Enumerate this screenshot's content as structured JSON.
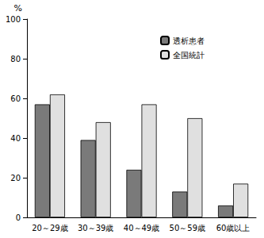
{
  "chart_data": {
    "type": "bar",
    "y_label": "%",
    "categories": [
      "20～29歳",
      "30～39歳",
      "40～49歳",
      "50～59歳",
      "60歳以上"
    ],
    "series": [
      {
        "name": "透析患者",
        "color": "#7a7a7a",
        "values": [
          57,
          39,
          24,
          13,
          6
        ]
      },
      {
        "name": "全国統計",
        "color": "#e0e0e0",
        "values": [
          62,
          48,
          57,
          50,
          17
        ]
      }
    ],
    "ylim": [
      0,
      100
    ],
    "yticks": [
      0,
      20,
      40,
      60,
      80,
      100
    ],
    "grid": false,
    "legend": "top-right"
  }
}
